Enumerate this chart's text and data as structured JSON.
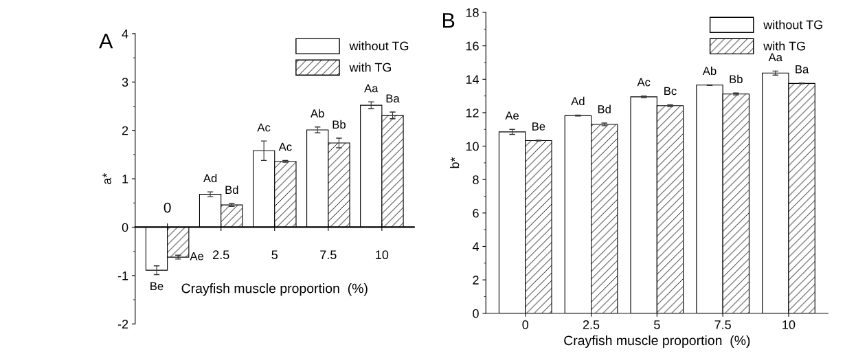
{
  "chart_data": [
    {
      "type": "bar",
      "title": "A",
      "xlabel": "Crayfish muscle proportion  (%)",
      "ylabel": "a*",
      "categories": [
        "0",
        "2.5",
        "5",
        "7.5",
        "10"
      ],
      "series": [
        {
          "name": "without TG",
          "color": "#ffffff",
          "values": [
            -0.89,
            0.68,
            1.58,
            2.01,
            2.52
          ],
          "errors": [
            0.09,
            0.05,
            0.2,
            0.06,
            0.07
          ],
          "value_labels": [
            "Be",
            "Ad",
            "Ac",
            "Ab",
            "Aa"
          ]
        },
        {
          "name": "with TG",
          "color": "#ffffff",
          "values": [
            -0.62,
            0.46,
            1.36,
            1.74,
            2.31
          ],
          "errors": [
            0.04,
            0.03,
            0.02,
            0.1,
            0.07
          ],
          "value_labels": [
            "Ae",
            "Bd",
            "Ac",
            "Bb",
            "Ba"
          ]
        }
      ],
      "ylim": [
        -2,
        4
      ],
      "yticks": [
        -2,
        -1,
        0,
        1,
        2,
        3,
        4
      ],
      "grid": false,
      "legend": "top right"
    },
    {
      "type": "bar",
      "title": "B",
      "xlabel": "Crayfish muscle proportion  (%)",
      "ylabel": "b*",
      "categories": [
        "0",
        "2.5",
        "5",
        "7.5",
        "10"
      ],
      "series": [
        {
          "name": "without TG",
          "color": "#ffffff",
          "values": [
            10.85,
            11.83,
            12.95,
            13.65,
            14.37
          ],
          "errors": [
            0.15,
            0.03,
            0.05,
            0.02,
            0.12
          ],
          "value_labels": [
            "Ae",
            "Ad",
            "Ac",
            "Ab",
            "Aa"
          ]
        },
        {
          "name": "with TG",
          "color": "#ffffff",
          "values": [
            10.33,
            11.3,
            12.42,
            13.12,
            13.75
          ],
          "errors": [
            0.02,
            0.08,
            0.05,
            0.06,
            0.02
          ],
          "value_labels": [
            "Be",
            "Bd",
            "Bc",
            "Bb",
            "Ba"
          ]
        }
      ],
      "ylim": [
        0,
        18
      ],
      "yticks": [
        0,
        2,
        4,
        6,
        8,
        10,
        12,
        14,
        16,
        18
      ],
      "grid": false,
      "legend": "top right"
    }
  ]
}
